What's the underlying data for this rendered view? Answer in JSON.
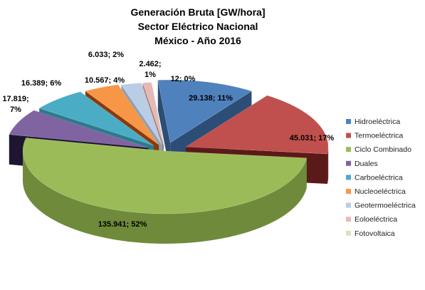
{
  "chart_data": {
    "type": "pie",
    "title_lines": [
      "Generación Bruta [GW/hora]",
      "Sector Eléctrico Nacional",
      "México - Año 2016"
    ],
    "legend_position": "right",
    "categories": [
      "Hidroeléctrica",
      "Termoeléctrica",
      "Ciclo Combinado",
      "Duales",
      "Carboeléctrica",
      "Nucleoeléctrica",
      "Geotermoeléctrica",
      "Eoloeléctrica",
      "Fotovoltaica"
    ],
    "values": [
      29.138,
      45.031,
      135.941,
      17.819,
      16.389,
      10.567,
      6.033,
      2.462,
      0.012
    ],
    "data_labels": [
      [
        "29.138; 11%"
      ],
      [
        "45.031; 17%"
      ],
      [
        "135.941; 52%"
      ],
      [
        "17.819;",
        "7%"
      ],
      [
        "16.389; 6%"
      ],
      [
        "10.567; 4%"
      ],
      [
        "6.033; 2%"
      ],
      [
        "2.462;",
        "1%"
      ],
      [
        "12; 0%"
      ]
    ],
    "colors": [
      "#4F81BD",
      "#C0504D",
      "#9BBB59",
      "#8064A2",
      "#4BACC6",
      "#F79646",
      "#B9CDE5",
      "#E6B9B8",
      "#D7E4BD"
    ],
    "side_colors": [
      "#2C4D75",
      "#5A1A18",
      "#6F8A3A",
      "#1E1530",
      "#2C7A8E",
      "#8A3A0A",
      "#8DA0B5",
      "#A67C7B",
      "#A5B68F"
    ]
  }
}
